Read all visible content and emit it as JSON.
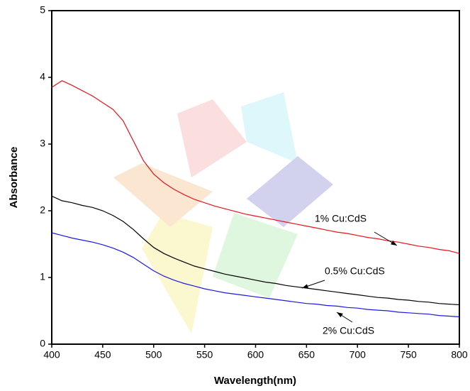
{
  "chart_data": {
    "type": "line",
    "x_label": "Wavelength(nm)",
    "y_label": "Absorbance",
    "x": [
      400,
      410,
      420,
      430,
      440,
      450,
      460,
      470,
      480,
      490,
      500,
      510,
      520,
      530,
      540,
      550,
      560,
      570,
      580,
      590,
      600,
      610,
      620,
      630,
      640,
      650,
      660,
      670,
      680,
      690,
      700,
      710,
      720,
      730,
      740,
      750,
      760,
      770,
      780,
      790,
      800
    ],
    "series": [
      {
        "name": "1% Cu:CdS",
        "color": "#e8141c",
        "values": [
          3.85,
          3.95,
          3.88,
          3.8,
          3.72,
          3.62,
          3.52,
          3.35,
          3.05,
          2.75,
          2.55,
          2.42,
          2.32,
          2.24,
          2.17,
          2.12,
          2.07,
          2.03,
          1.99,
          1.95,
          1.92,
          1.89,
          1.86,
          1.83,
          1.8,
          1.77,
          1.74,
          1.71,
          1.68,
          1.66,
          1.63,
          1.6,
          1.58,
          1.55,
          1.53,
          1.5,
          1.47,
          1.45,
          1.42,
          1.4,
          1.36
        ]
      },
      {
        "name": "0.5% Cu:CdS",
        "color": "#000000",
        "values": [
          2.22,
          2.15,
          2.12,
          2.08,
          2.05,
          2.0,
          1.93,
          1.84,
          1.72,
          1.58,
          1.45,
          1.36,
          1.29,
          1.23,
          1.17,
          1.13,
          1.09,
          1.05,
          1.02,
          0.99,
          0.96,
          0.93,
          0.91,
          0.88,
          0.86,
          0.84,
          0.82,
          0.8,
          0.78,
          0.76,
          0.74,
          0.72,
          0.7,
          0.69,
          0.67,
          0.66,
          0.64,
          0.63,
          0.61,
          0.6,
          0.59
        ]
      },
      {
        "name": "2% Cu:CdS",
        "color": "#1a1ae0",
        "values": [
          1.67,
          1.63,
          1.59,
          1.56,
          1.53,
          1.49,
          1.44,
          1.38,
          1.3,
          1.2,
          1.1,
          1.02,
          0.96,
          0.91,
          0.87,
          0.83,
          0.8,
          0.77,
          0.75,
          0.73,
          0.71,
          0.69,
          0.67,
          0.65,
          0.63,
          0.61,
          0.6,
          0.58,
          0.57,
          0.55,
          0.54,
          0.52,
          0.51,
          0.5,
          0.48,
          0.47,
          0.46,
          0.45,
          0.43,
          0.42,
          0.41
        ]
      }
    ],
    "xlim": [
      400,
      800
    ],
    "ylim": [
      0,
      5
    ],
    "xticks": [
      400,
      450,
      500,
      550,
      600,
      650,
      700,
      750,
      800
    ],
    "yticks": [
      0,
      1,
      2,
      3,
      4,
      5
    ]
  }
}
